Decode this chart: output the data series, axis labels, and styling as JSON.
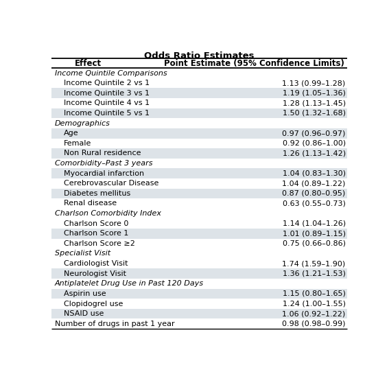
{
  "title": "Odds Ratio Estimates",
  "col1_header": "Effect",
  "col2_header": "Point Estimate (95% Confidence Limits)",
  "rows": [
    {
      "label": "Income Quintile Comparisons",
      "value": "",
      "is_category": true,
      "indent": false
    },
    {
      "label": "Income Quintile 2 vs 1",
      "value": "1.13 (0.99–1.28)",
      "is_category": false,
      "indent": true
    },
    {
      "label": "Income Quintile 3 vs 1",
      "value": "1.19 (1.05–1.36)",
      "is_category": false,
      "indent": true
    },
    {
      "label": "Income Quintile 4 vs 1",
      "value": "1.28 (1.13–1.45)",
      "is_category": false,
      "indent": true
    },
    {
      "label": "Income Quintile 5 vs 1",
      "value": "1.50 (1.32–1.68)",
      "is_category": false,
      "indent": true
    },
    {
      "label": "Demographics",
      "value": "",
      "is_category": true,
      "indent": false
    },
    {
      "label": "Age",
      "value": "0.97 (0.96–0.97)",
      "is_category": false,
      "indent": true
    },
    {
      "label": "Female",
      "value": "0.92 (0.86–1.00)",
      "is_category": false,
      "indent": true
    },
    {
      "label": "Non Rural residence",
      "value": "1.26 (1.13–1.42)",
      "is_category": false,
      "indent": true
    },
    {
      "label": "Comorbidity–Past 3 years",
      "value": "",
      "is_category": true,
      "indent": false
    },
    {
      "label": "Myocardial infarction",
      "value": "1.04 (0.83–1.30)",
      "is_category": false,
      "indent": true
    },
    {
      "label": "Cerebrovascular Disease",
      "value": "1.04 (0.89–1.22)",
      "is_category": false,
      "indent": true
    },
    {
      "label": "Diabetes mellitus",
      "value": "0.87 (0.80–0.95)",
      "is_category": false,
      "indent": true
    },
    {
      "label": "Renal disease",
      "value": "0.63 (0.55–0.73)",
      "is_category": false,
      "indent": true
    },
    {
      "label": "Charlson Comorbidity Index",
      "value": "",
      "is_category": true,
      "indent": false
    },
    {
      "label": "Charlson Score 0",
      "value": "1.14 (1.04–1.26)",
      "is_category": false,
      "indent": true
    },
    {
      "label": "Charlson Score 1",
      "value": "1.01 (0.89–1.15)",
      "is_category": false,
      "indent": true
    },
    {
      "label": "Charlson Score ≥2",
      "value": "0.75 (0.66–0.86)",
      "is_category": false,
      "indent": true
    },
    {
      "label": "Specialist Visit",
      "value": "",
      "is_category": true,
      "indent": false
    },
    {
      "label": "Cardiologist Visit",
      "value": "1.74 (1.59–1.90)",
      "is_category": false,
      "indent": true
    },
    {
      "label": "Neurologist Visit",
      "value": "1.36 (1.21–1.53)",
      "is_category": false,
      "indent": true
    },
    {
      "label": "Antiplatelet Drug Use in Past 120 Days",
      "value": "",
      "is_category": true,
      "indent": false
    },
    {
      "label": "Aspirin use",
      "value": "1.15 (0.80–1.65)",
      "is_category": false,
      "indent": true
    },
    {
      "label": "Clopidogrel use",
      "value": "1.24 (1.00–1.55)",
      "is_category": false,
      "indent": true
    },
    {
      "label": "NSAID use",
      "value": "1.06 (0.92–1.22)",
      "is_category": false,
      "indent": true
    },
    {
      "label": "Number of drugs in past 1 year",
      "value": "0.98 (0.98–0.99)",
      "is_category": false,
      "indent": false
    }
  ],
  "bg_color_light": "#dde3e8",
  "bg_color_white": "#ffffff",
  "title_fontsize": 9.5,
  "header_fontsize": 8.5,
  "row_fontsize": 8.0,
  "category_fontsize": 8.0
}
